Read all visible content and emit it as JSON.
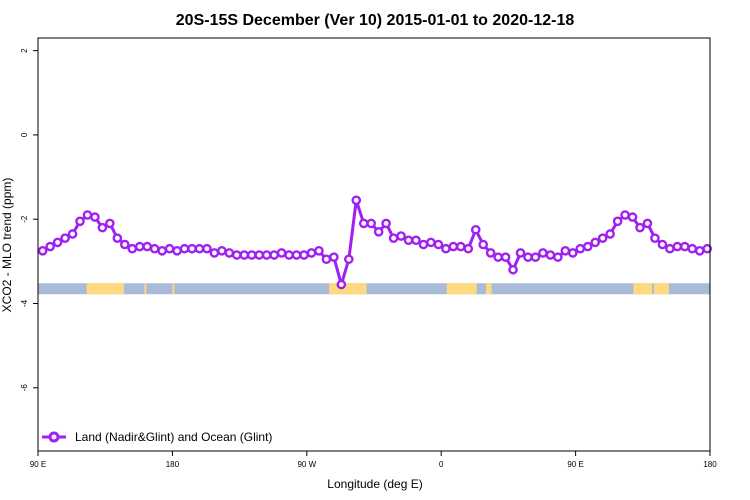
{
  "chart_data": {
    "type": "line",
    "title": "20S-15S December (Ver 10)   2015-01-01 to 2020-12-18",
    "xlabel": "Longitude (deg E)",
    "ylabel": "XCO2 - MLO trend (ppm)",
    "xlim": [
      90,
      450
    ],
    "ylim": [
      -7.5,
      2.3
    ],
    "x_ticks": [
      {
        "value": 90,
        "label": "90 E"
      },
      {
        "value": 162,
        "label": "180"
      },
      {
        "value": 234,
        "label": "90 W"
      },
      {
        "value": 306,
        "label": "0"
      },
      {
        "value": 378,
        "label": "90 E"
      },
      {
        "value": 450,
        "label": "180"
      }
    ],
    "y_ticks": [
      {
        "value": 2,
        "label": "2"
      },
      {
        "value": 0,
        "label": "0"
      },
      {
        "value": -2,
        "label": "-2"
      },
      {
        "value": -4,
        "label": "-4"
      },
      {
        "value": -6,
        "label": "-6"
      }
    ],
    "series": [
      {
        "name": "Land (Nadir&Glint) and Ocean (Glint)",
        "color": "#a020f0",
        "x": [
          92.5,
          96.5,
          100.5,
          104.5,
          108.5,
          112.5,
          116.5,
          120.5,
          124.5,
          128.5,
          132.5,
          136.5,
          140.5,
          144.5,
          148.5,
          152.5,
          156.5,
          160.5,
          164.5,
          168.5,
          172.5,
          176.5,
          180.5,
          184.5,
          188.5,
          192.5,
          196.5,
          200.5,
          204.5,
          208.5,
          212.5,
          216.5,
          220.5,
          224.5,
          228.5,
          232.5,
          236.5,
          240.5,
          244.5,
          248.5,
          252.5,
          256.5,
          260.5,
          264.5,
          268.5,
          272.5,
          276.5,
          280.5,
          284.5,
          288.5,
          292.5,
          296.5,
          300.5,
          304.5,
          308.5,
          312.5,
          316.5,
          320.5,
          324.5,
          328.5,
          332.5,
          336.5,
          340.5,
          344.5,
          348.5,
          352.5,
          356.5,
          360.5,
          364.5,
          368.5,
          372.5,
          376.5,
          380.5,
          384.5,
          388.5,
          392.5,
          396.5,
          400.5,
          404.5,
          408.5,
          412.5,
          416.5,
          420.5,
          424.5,
          428.5,
          432.5,
          436.5,
          440.5,
          444.5,
          448.5
        ],
        "values": [
          -2.75,
          -2.65,
          -2.55,
          -2.45,
          -2.35,
          -2.05,
          -1.9,
          -1.95,
          -2.2,
          -2.1,
          -2.45,
          -2.6,
          -2.7,
          -2.65,
          -2.65,
          -2.7,
          -2.75,
          -2.7,
          -2.75,
          -2.7,
          -2.7,
          -2.7,
          -2.7,
          -2.8,
          -2.75,
          -2.8,
          -2.85,
          -2.85,
          -2.85,
          -2.85,
          -2.85,
          -2.85,
          -2.8,
          -2.85,
          -2.85,
          -2.85,
          -2.8,
          -2.75,
          -2.95,
          -2.9,
          -3.55,
          -2.95,
          -1.55,
          -2.1,
          -2.1,
          -2.3,
          -2.1,
          -2.45,
          -2.4,
          -2.5,
          -2.5,
          -2.6,
          -2.55,
          -2.6,
          -2.7,
          -2.65,
          -2.65,
          -2.7,
          -2.25,
          -2.6,
          -2.8,
          -2.9,
          -2.9,
          -3.2,
          -2.8,
          -2.9,
          -2.9,
          -2.8,
          -2.85,
          -2.9,
          -2.75,
          -2.8,
          -2.7,
          -2.65,
          -2.55,
          -2.45,
          -2.35,
          -2.05,
          -1.9,
          -1.95,
          -2.2,
          -2.1,
          -2.45,
          -2.6,
          -2.7,
          -2.65,
          -2.65,
          -2.7,
          -2.75,
          -2.7
        ]
      }
    ],
    "surface_band": {
      "y_value": -3.65,
      "ocean_color": "#a8bcd9",
      "land_color": "#ffd980",
      "land_segments": [
        [
          116,
          136
        ],
        [
          147,
          148
        ],
        [
          162,
          163
        ],
        [
          246,
          266
        ],
        [
          309,
          325
        ],
        [
          330,
          333
        ],
        [
          409,
          419
        ],
        [
          420,
          428
        ]
      ]
    },
    "legend": {
      "position": "bottom-left",
      "label": "Land (Nadir&Glint) and Ocean (Glint)"
    }
  }
}
